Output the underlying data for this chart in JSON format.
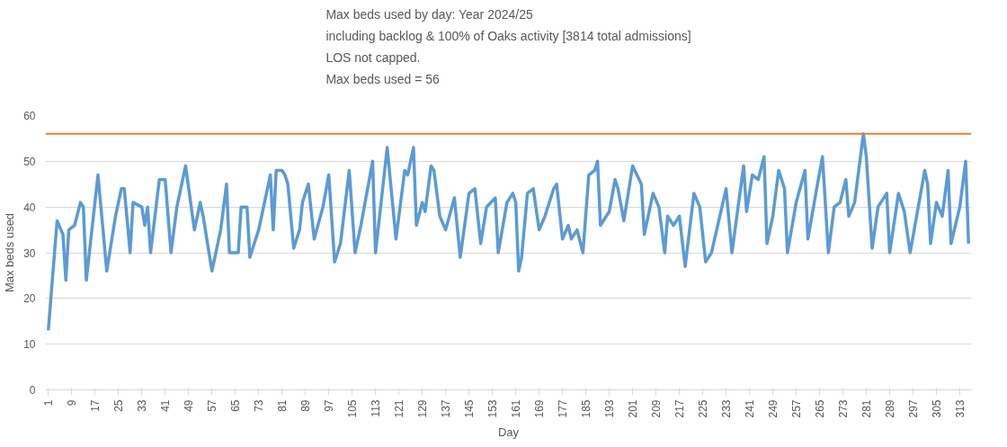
{
  "chart_data": {
    "type": "line",
    "title": "Max beds used by day: Year 2024/25\nincluding backlog & 100% of Oaks activity [3814 total admissions]\nLOS not capped.\nMax beds used = 56",
    "xlabel": "Day",
    "ylabel": "Max beds used",
    "x": [
      1,
      4,
      6,
      7,
      8,
      10,
      12,
      13,
      14,
      18,
      19,
      21,
      24,
      26,
      27,
      29,
      30,
      33,
      34,
      35,
      36,
      39,
      41,
      43,
      45,
      48,
      51,
      53,
      54,
      57,
      60,
      62,
      63,
      66,
      67,
      69,
      70,
      73,
      75,
      77,
      78,
      79,
      81,
      82,
      83,
      85,
      87,
      88,
      90,
      92,
      95,
      97,
      99,
      101,
      104,
      106,
      108,
      112,
      113,
      117,
      120,
      123,
      124,
      126,
      127,
      129,
      130,
      132,
      133,
      135,
      137,
      140,
      142,
      145,
      147,
      149,
      151,
      154,
      155,
      158,
      160,
      161,
      162,
      163,
      165,
      167,
      169,
      171,
      174,
      175,
      177,
      179,
      180,
      182,
      184,
      186,
      188,
      189,
      190,
      193,
      195,
      196,
      198,
      201,
      204,
      205,
      208,
      210,
      212,
      213,
      215,
      217,
      219,
      222,
      224,
      226,
      228,
      233,
      235,
      239,
      240,
      242,
      244,
      246,
      247,
      249,
      251,
      253,
      254,
      257,
      260,
      261,
      264,
      266,
      268,
      270,
      272,
      274,
      275,
      277,
      280,
      281,
      283,
      285,
      288,
      289,
      292,
      294,
      296,
      301,
      302,
      303,
      305,
      307,
      309,
      310,
      313,
      315,
      316
    ],
    "series": [
      {
        "color": "#5b9bd5",
        "values": [
          13,
          37,
          34,
          24,
          35,
          36,
          41,
          40,
          24,
          47,
          40,
          26,
          38,
          44,
          44,
          30,
          41,
          40,
          36,
          40,
          30,
          46,
          46,
          30,
          40,
          49,
          35,
          41,
          38,
          26,
          35,
          45,
          30,
          30,
          40,
          40,
          29,
          35,
          41,
          47,
          35,
          48,
          48,
          47,
          45,
          31,
          35,
          41,
          45,
          33,
          40,
          47,
          28,
          32,
          48,
          30,
          36,
          50,
          30,
          53,
          33,
          48,
          47,
          53,
          36,
          41,
          39,
          49,
          48,
          38,
          35,
          42,
          29,
          43,
          44,
          32,
          40,
          42,
          30,
          41,
          43,
          41,
          26,
          29,
          43,
          44,
          35,
          38,
          44,
          45,
          33,
          36,
          33,
          35,
          30,
          47,
          48,
          50,
          36,
          39,
          46,
          44,
          37,
          49,
          45,
          34,
          43,
          40,
          30,
          38,
          36,
          38,
          27,
          43,
          40,
          28,
          30,
          44,
          30,
          49,
          39,
          47,
          46,
          51,
          32,
          38,
          48,
          44,
          30,
          41,
          48,
          33,
          44,
          51,
          30,
          40,
          41,
          46,
          38,
          41,
          56,
          51,
          31,
          40,
          43,
          30,
          43,
          39,
          30,
          48,
          45,
          32,
          41,
          38,
          48,
          32,
          40,
          50,
          32
        ]
      }
    ],
    "xlim": [
      0,
      317
    ],
    "xticks": [
      1,
      9,
      17,
      25,
      33,
      41,
      49,
      57,
      65,
      73,
      81,
      89,
      97,
      105,
      113,
      121,
      129,
      137,
      145,
      153,
      161,
      169,
      177,
      185,
      193,
      201,
      209,
      217,
      225,
      233,
      241,
      249,
      257,
      265,
      273,
      281,
      289,
      297,
      305,
      313
    ],
    "ylim": [
      0,
      60
    ],
    "yticks": [
      0,
      10,
      20,
      30,
      40,
      50,
      60
    ],
    "grid": "y",
    "marker": "none",
    "line_style": "solid",
    "ref_lines": [
      {
        "axis": "y",
        "value": 56,
        "color": "#ed7d31"
      }
    ]
  }
}
